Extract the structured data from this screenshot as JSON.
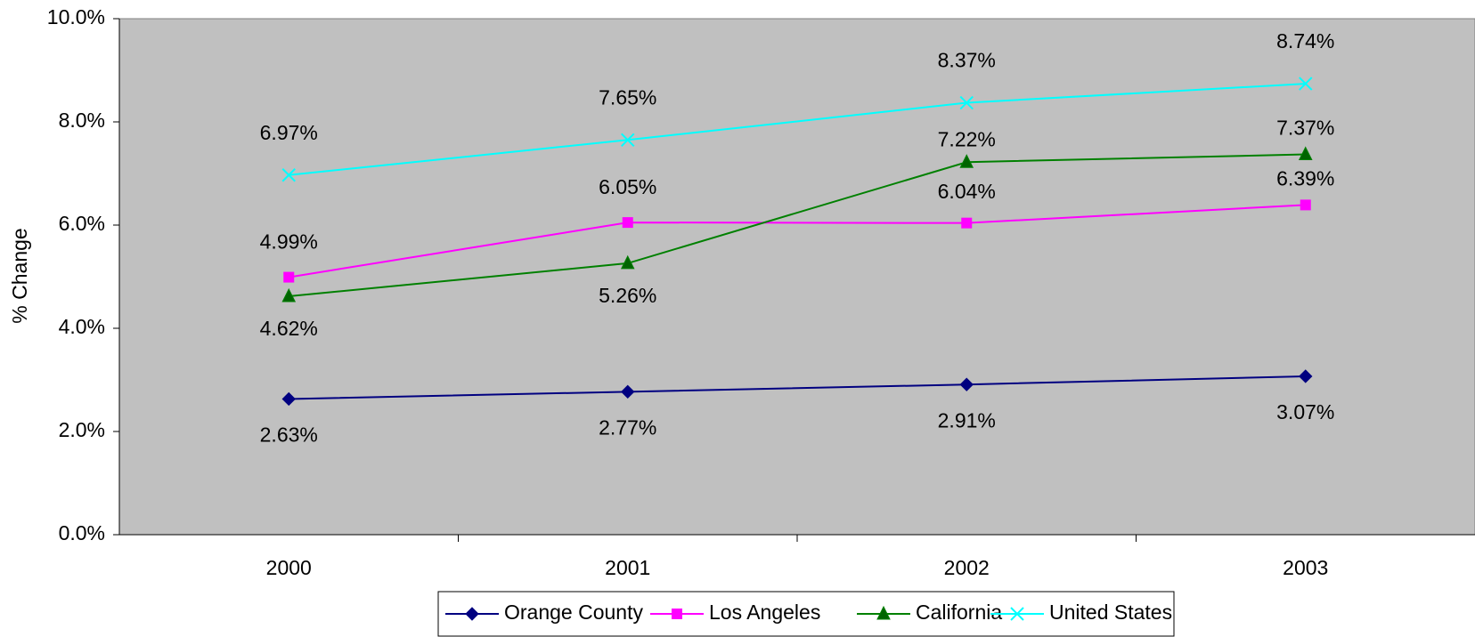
{
  "chart_data": {
    "type": "line",
    "y_label": "% Change",
    "categories": [
      "2000",
      "2001",
      "2002",
      "2003"
    ],
    "ylim": [
      0,
      10
    ],
    "yticks": [
      {
        "value": 0,
        "label": "0.0%"
      },
      {
        "value": 2,
        "label": "2.0%"
      },
      {
        "value": 4,
        "label": "4.0%"
      },
      {
        "value": 6,
        "label": "6.0%"
      },
      {
        "value": 8,
        "label": "8.0%"
      },
      {
        "value": 10,
        "label": "10.0%"
      }
    ],
    "plot_background": "#c0c0c0",
    "legend": "bottom",
    "series": [
      {
        "name": "Orange County",
        "color": "#000080",
        "marker": "diamond",
        "values": [
          2.63,
          2.77,
          2.91,
          3.07
        ],
        "value_labels": [
          "2.63%",
          "2.77%",
          "2.91%",
          "3.07%"
        ]
      },
      {
        "name": "Los Angeles",
        "color": "#ff00ff",
        "marker": "square",
        "values": [
          4.99,
          6.05,
          6.04,
          6.39
        ],
        "value_labels": [
          "4.99%",
          "6.05%",
          "6.04%",
          "6.39%"
        ]
      },
      {
        "name": "California",
        "color": "#008000",
        "marker": "triangle",
        "values": [
          4.62,
          5.26,
          7.22,
          7.37
        ],
        "value_labels": [
          "4.62%",
          "5.26%",
          "7.22%",
          "7.37%"
        ]
      },
      {
        "name": "United States",
        "color": "#00ffff",
        "marker": "x",
        "values": [
          6.97,
          7.65,
          8.37,
          8.74
        ],
        "value_labels": [
          "6.97%",
          "7.65%",
          "8.37%",
          "8.74%"
        ]
      }
    ]
  }
}
